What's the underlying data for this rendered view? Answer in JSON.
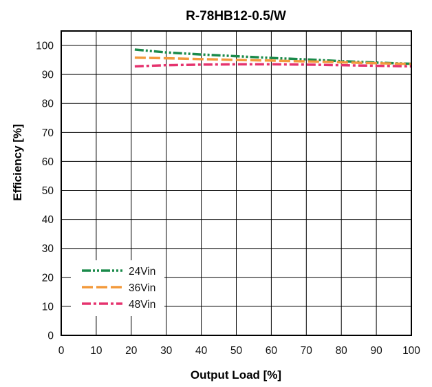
{
  "chart_data": {
    "type": "line",
    "title": "R-78HB12-0.5/W",
    "xlabel": "Output Load [%]",
    "ylabel": "Efficiency [%]",
    "xlim": [
      0,
      100
    ],
    "ylim": [
      0,
      105
    ],
    "xticks": [
      0,
      10,
      20,
      30,
      40,
      50,
      60,
      70,
      80,
      90,
      100
    ],
    "yticks": [
      0,
      10,
      20,
      30,
      40,
      50,
      60,
      70,
      80,
      90,
      100
    ],
    "grid": true,
    "legend": "bottom-left",
    "x": [
      21,
      30,
      40,
      50,
      60,
      70,
      80,
      90,
      100
    ],
    "series": [
      {
        "name": "24Vin",
        "color": "#1a8a4a",
        "dash": "dash-dot-dot",
        "values": [
          98.6,
          97.6,
          96.9,
          96.3,
          95.7,
          95.2,
          94.6,
          94.1,
          93.7
        ]
      },
      {
        "name": "36Vin",
        "color": "#f39a3c",
        "dash": "long-dash",
        "values": [
          95.8,
          95.6,
          95.3,
          95.0,
          94.8,
          94.5,
          94.2,
          93.9,
          93.6
        ]
      },
      {
        "name": "48Vin",
        "color": "#e5336e",
        "dash": "dash-dot",
        "values": [
          92.8,
          93.2,
          93.4,
          93.5,
          93.5,
          93.4,
          93.2,
          93.0,
          92.8
        ]
      }
    ]
  }
}
